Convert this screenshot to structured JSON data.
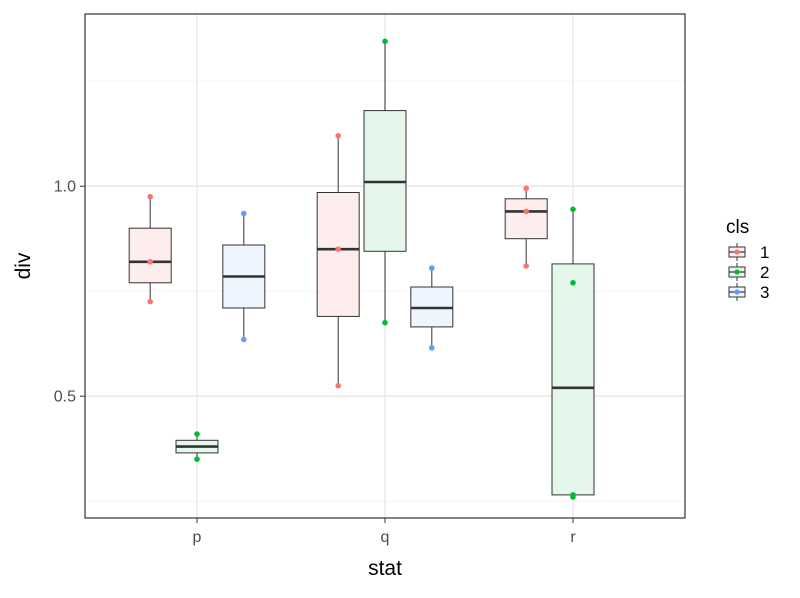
{
  "chart_data": {
    "type": "boxplot",
    "title": "",
    "xlabel": "stat",
    "ylabel": "div",
    "categories": [
      "p",
      "q",
      "r"
    ],
    "ylim": [
      0.21,
      1.41
    ],
    "y_ticks": [
      0.5,
      1.0
    ],
    "y_tick_labels": [
      "0.5",
      "1.0"
    ],
    "y_minor_ticks": [
      0.25,
      0.75,
      1.25
    ],
    "grid": true,
    "legend": {
      "title": "cls",
      "position": "right",
      "entries": [
        "1",
        "2",
        "3"
      ]
    },
    "colors": {
      "1": {
        "point": "#f8766d",
        "fill": "#fdeeed"
      },
      "2": {
        "point": "#00ba38",
        "fill": "#e5f6ea"
      },
      "3": {
        "point": "#619cff",
        "fill": "#eff5ff"
      }
    },
    "series": [
      {
        "name": "1",
        "boxes": [
          {
            "category": "p",
            "q1": 0.77,
            "median": 0.82,
            "q3": 0.9,
            "whisker_low": 0.725,
            "whisker_high": 0.975,
            "points": [
              0.975,
              0.82,
              0.725
            ]
          },
          {
            "category": "q",
            "q1": 0.69,
            "median": 0.85,
            "q3": 0.985,
            "whisker_low": 0.525,
            "whisker_high": 1.12,
            "points": [
              1.12,
              0.85,
              0.525
            ]
          },
          {
            "category": "r",
            "q1": 0.875,
            "median": 0.94,
            "q3": 0.97,
            "whisker_low": 0.81,
            "whisker_high": 0.995,
            "points": [
              0.995,
              0.94,
              0.81
            ]
          }
        ]
      },
      {
        "name": "2",
        "boxes": [
          {
            "category": "p",
            "q1": 0.365,
            "median": 0.38,
            "q3": 0.395,
            "whisker_low": 0.35,
            "whisker_high": 0.41,
            "points": [
              0.41,
              0.35
            ]
          },
          {
            "category": "q",
            "q1": 0.845,
            "median": 1.01,
            "q3": 1.18,
            "whisker_low": 0.675,
            "whisker_high": 1.345,
            "points": [
              1.345,
              0.675
            ]
          },
          {
            "category": "r",
            "q1": 0.265,
            "median": 0.52,
            "q3": 0.815,
            "whisker_low": 0.255,
            "whisker_high": 0.945,
            "points": [
              0.945,
              0.77,
              0.265,
              0.26
            ]
          }
        ]
      },
      {
        "name": "3",
        "boxes": [
          {
            "category": "p",
            "q1": 0.71,
            "median": 0.785,
            "q3": 0.86,
            "whisker_low": 0.635,
            "whisker_high": 0.935,
            "points": [
              0.935,
              0.635
            ]
          },
          {
            "category": "q",
            "q1": 0.665,
            "median": 0.71,
            "q3": 0.76,
            "whisker_low": 0.615,
            "whisker_high": 0.805,
            "points": [
              0.805,
              0.615
            ]
          }
        ]
      }
    ]
  }
}
